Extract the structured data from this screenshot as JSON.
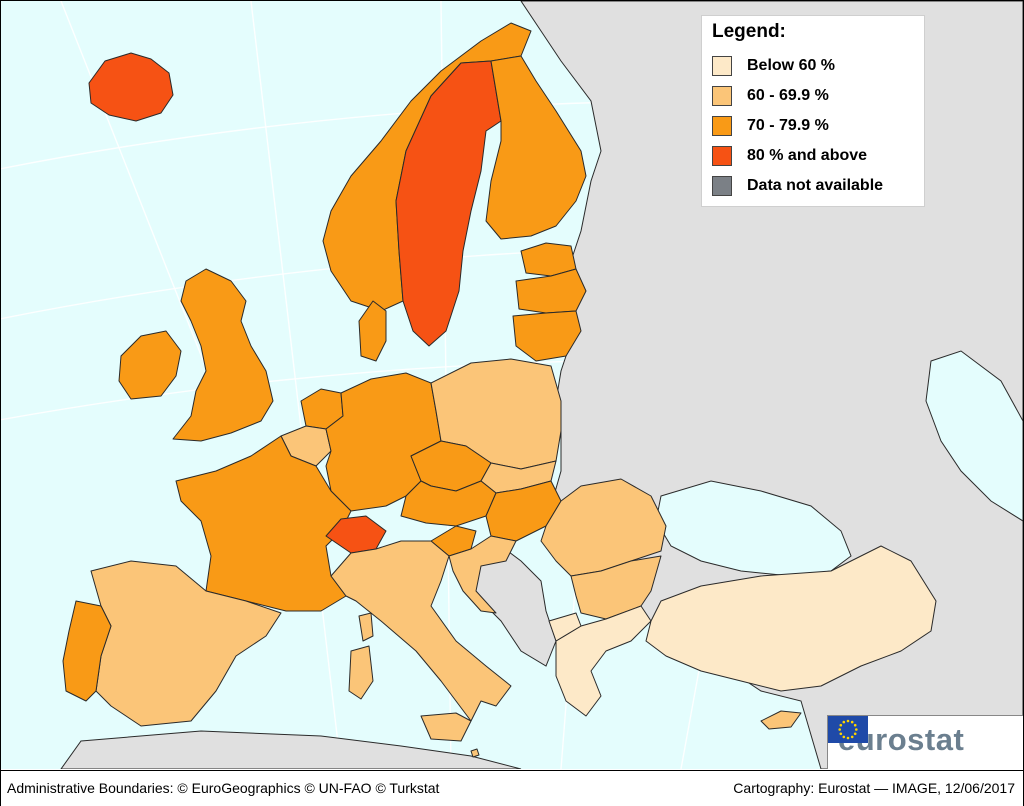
{
  "legend": {
    "title": "Legend:",
    "items": [
      {
        "label": "Below 60 %",
        "color": "#fde9c8"
      },
      {
        "label": "60 - 69.9 %",
        "color": "#fbc578"
      },
      {
        "label": "70 - 79.9 %",
        "color": "#f99a16"
      },
      {
        "label": "80 % and above",
        "color": "#f65214"
      },
      {
        "label": "Data not available",
        "color": "#7b8086"
      }
    ]
  },
  "colors": {
    "sea": "#e4fdfd",
    "non_eu_land": "#e0e0e0",
    "border": "#2a2a2a"
  },
  "regions": [
    {
      "name": "Iceland",
      "class": "80 % and above"
    },
    {
      "name": "Norway",
      "class": "70 - 79.9 %"
    },
    {
      "name": "Sweden",
      "class": "80 % and above"
    },
    {
      "name": "Finland",
      "class": "70 - 79.9 %"
    },
    {
      "name": "Estonia",
      "class": "70 - 79.9 %"
    },
    {
      "name": "Latvia",
      "class": "70 - 79.9 %"
    },
    {
      "name": "Lithuania",
      "class": "70 - 79.9 %"
    },
    {
      "name": "Denmark",
      "class": "70 - 79.9 %"
    },
    {
      "name": "Ireland",
      "class": "70 - 79.9 %"
    },
    {
      "name": "United Kingdom",
      "class": "70 - 79.9 %"
    },
    {
      "name": "Netherlands",
      "class": "70 - 79.9 %"
    },
    {
      "name": "Belgium",
      "class": "60 - 69.9 %"
    },
    {
      "name": "Luxembourg",
      "class": "70 - 79.9 %"
    },
    {
      "name": "Germany",
      "class": "70 - 79.9 %"
    },
    {
      "name": "Poland",
      "class": "60 - 69.9 %"
    },
    {
      "name": "Czechia",
      "class": "70 - 79.9 %"
    },
    {
      "name": "Slovakia",
      "class": "60 - 69.9 %"
    },
    {
      "name": "Austria",
      "class": "70 - 79.9 %"
    },
    {
      "name": "Hungary",
      "class": "70 - 79.9 %"
    },
    {
      "name": "Slovenia",
      "class": "70 - 79.9 %"
    },
    {
      "name": "Croatia",
      "class": "60 - 69.9 %"
    },
    {
      "name": "Romania",
      "class": "60 - 69.9 %"
    },
    {
      "name": "Bulgaria",
      "class": "60 - 69.9 %"
    },
    {
      "name": "France",
      "class": "70 - 79.9 %"
    },
    {
      "name": "Switzerland",
      "class": "80 % and above"
    },
    {
      "name": "Italy",
      "class": "60 - 69.9 %"
    },
    {
      "name": "Spain",
      "class": "60 - 69.9 %"
    },
    {
      "name": "Portugal",
      "class": "70 - 79.9 %"
    },
    {
      "name": "Greece",
      "class": "Below 60 %"
    },
    {
      "name": "Turkey",
      "class": "Below 60 %"
    },
    {
      "name": "North Macedonia",
      "class": "Below 60 %"
    },
    {
      "name": "Cyprus",
      "class": "60 - 69.9 %"
    },
    {
      "name": "Malta",
      "class": "60 - 69.9 %"
    }
  ],
  "logo": {
    "text": "eurostat",
    "flag_icon": "eu-flag-icon"
  },
  "footer": {
    "left": "Administrative Boundaries: © EuroGeographics © UN-FAO © Turkstat",
    "right": "Cartography: Eurostat — IMAGE, 12/06/2017"
  }
}
